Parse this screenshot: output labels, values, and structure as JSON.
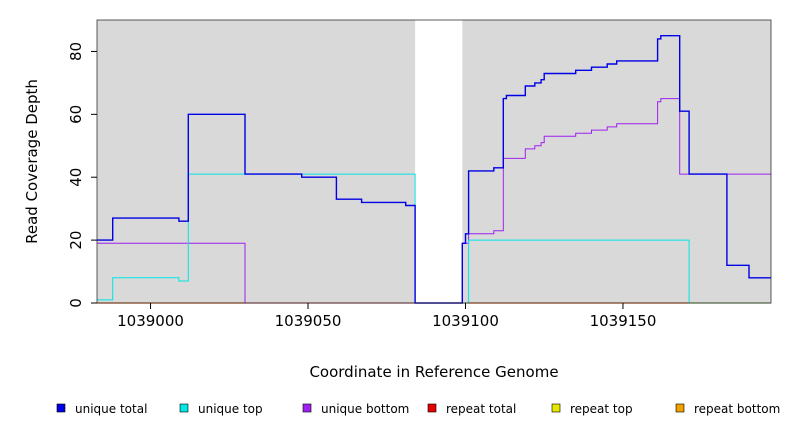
{
  "chart_data": {
    "type": "line",
    "title": "",
    "xlabel": "Coordinate in Reference Genome",
    "ylabel": "Read Coverage Depth",
    "xlim": [
      1038983,
      1039197
    ],
    "ylim": [
      0,
      90
    ],
    "x_ticks": [
      1039000,
      1039050,
      1039100,
      1039150
    ],
    "x_tick_labels": [
      "1039000",
      "1039050",
      "1039100",
      "1039150"
    ],
    "y_ticks": [
      0,
      20,
      40,
      60,
      80
    ],
    "y_tick_labels": [
      "0",
      "20",
      "40",
      "60",
      "80"
    ],
    "grid": false,
    "legend_position": "bottom",
    "shaded_regions": [
      [
        1038983,
        1039084
      ],
      [
        1039099,
        1039197
      ]
    ],
    "series": [
      {
        "name": "unique total",
        "color": "#0000e6",
        "x": [
          1038983,
          1038988,
          1039009,
          1039012,
          1039030,
          1039048,
          1039059,
          1039067,
          1039081,
          1039084,
          1039099,
          1039100,
          1039101,
          1039109,
          1039112,
          1039113,
          1039119,
          1039122,
          1039124,
          1039125,
          1039135,
          1039140,
          1039145,
          1039148,
          1039161,
          1039162,
          1039168,
          1039171,
          1039183,
          1039190,
          1039197
        ],
        "y": [
          20,
          27,
          26,
          60,
          41,
          40,
          33,
          32,
          31,
          0,
          19,
          22,
          42,
          43,
          65,
          66,
          69,
          70,
          71,
          73,
          74,
          75,
          76,
          77,
          84,
          85,
          61,
          41,
          12,
          8,
          8
        ]
      },
      {
        "name": "unique top",
        "color": "#00e5e5",
        "x": [
          1038983,
          1038988,
          1039009,
          1039012,
          1039030,
          1039084,
          1039101,
          1039171,
          1039197
        ],
        "y": [
          1,
          8,
          7,
          41,
          41,
          0,
          20,
          0,
          0
        ]
      },
      {
        "name": "unique bottom",
        "color": "#a020f0",
        "x": [
          1038983,
          1039030,
          1039099,
          1039101,
          1039109,
          1039112,
          1039119,
          1039122,
          1039124,
          1039125,
          1039135,
          1039140,
          1039145,
          1039148,
          1039161,
          1039162,
          1039168,
          1039197
        ],
        "y": [
          19,
          0,
          19,
          22,
          23,
          46,
          49,
          50,
          51,
          53,
          54,
          55,
          56,
          57,
          64,
          65,
          41,
          41
        ]
      },
      {
        "name": "repeat total",
        "color": "#e60000",
        "x": [
          1038983,
          1039197
        ],
        "y": [
          0,
          0
        ]
      },
      {
        "name": "repeat top",
        "color": "#e6e600",
        "x": [
          1038983,
          1039197
        ],
        "y": [
          0,
          0
        ]
      },
      {
        "name": "repeat bottom",
        "color": "#f0a000",
        "x": [
          1038983,
          1039197
        ],
        "y": [
          0,
          0
        ]
      }
    ]
  }
}
